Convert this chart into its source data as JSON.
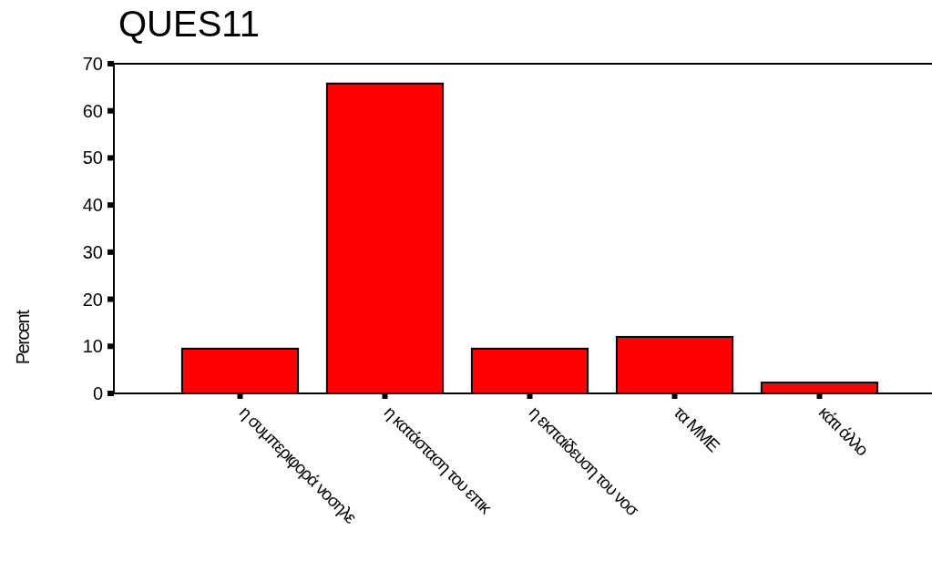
{
  "chart_data": {
    "type": "bar",
    "title": "QUES11",
    "ylabel": "Percent",
    "categories": [
      "η συμπεριφορά νοσηλε",
      "η κατάσταση του επικ",
      "η εκπαίδευση του νοσ",
      "τα ΜΜΕ",
      "κάτι άλλο"
    ],
    "values": [
      9.5,
      65.8,
      9.5,
      12.0,
      2.3
    ],
    "color": "#ff0000",
    "ylim": [
      0,
      70
    ],
    "yticks": [
      0,
      10,
      20,
      30,
      40,
      50,
      60,
      70
    ],
    "grid": false
  }
}
